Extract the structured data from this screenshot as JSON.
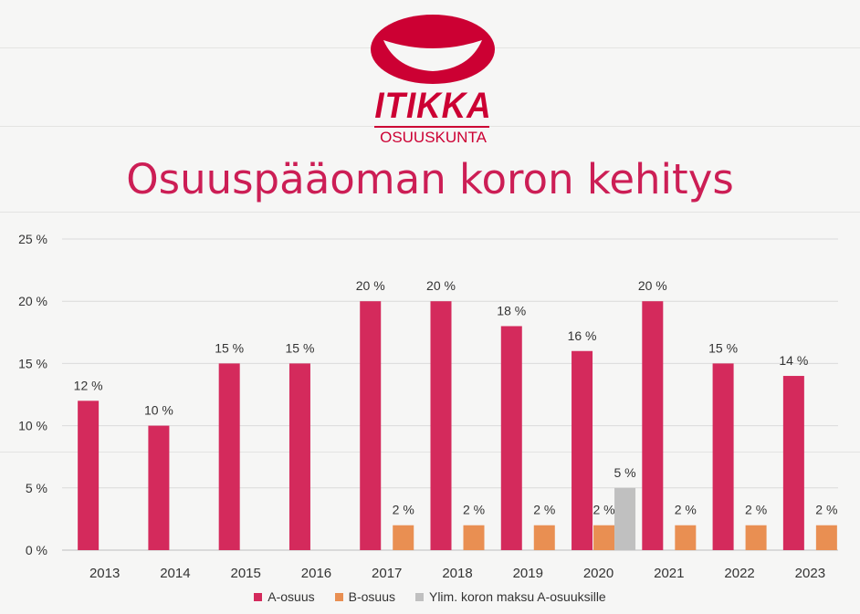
{
  "logo": {
    "name": "ITIKKA",
    "subtitle": "OSUUSKUNTA"
  },
  "title": "Osuuspääoman koron kehitys",
  "chart_data": {
    "type": "bar",
    "categories": [
      "2013",
      "2014",
      "2015",
      "2016",
      "2017",
      "2018",
      "2019",
      "2020",
      "2021",
      "2022",
      "2023"
    ],
    "series": [
      {
        "name": "A-osuus",
        "color": "#d42a5c",
        "values": [
          12,
          10,
          15,
          15,
          20,
          20,
          18,
          16,
          20,
          15,
          14
        ],
        "labels": [
          "12 %",
          "10 %",
          "15 %",
          "15 %",
          "20 %",
          "20 %",
          "18 %",
          "16 %",
          "20 %",
          "15 %",
          "14 %"
        ]
      },
      {
        "name": "B-osuus",
        "color": "#e98f52",
        "values": [
          null,
          null,
          null,
          null,
          2,
          2,
          2,
          2,
          2,
          2,
          2
        ],
        "labels": [
          null,
          null,
          null,
          null,
          "2 %",
          "2 %",
          "2 %",
          "2 %",
          "2 %",
          "2 %",
          "2 %"
        ]
      },
      {
        "name": "Ylim. koron maksu A-osuuksille",
        "color": "#c0c0c0",
        "values": [
          null,
          null,
          null,
          null,
          null,
          null,
          null,
          5,
          null,
          null,
          null
        ],
        "labels": [
          null,
          null,
          null,
          null,
          null,
          null,
          null,
          "5 %",
          null,
          null,
          null
        ]
      }
    ],
    "y_ticks": [
      "0 %",
      "5 %",
      "10 %",
      "15 %",
      "20 %",
      "25 %"
    ],
    "ylim": [
      0,
      25
    ],
    "grid": true,
    "legend": "bottom"
  }
}
